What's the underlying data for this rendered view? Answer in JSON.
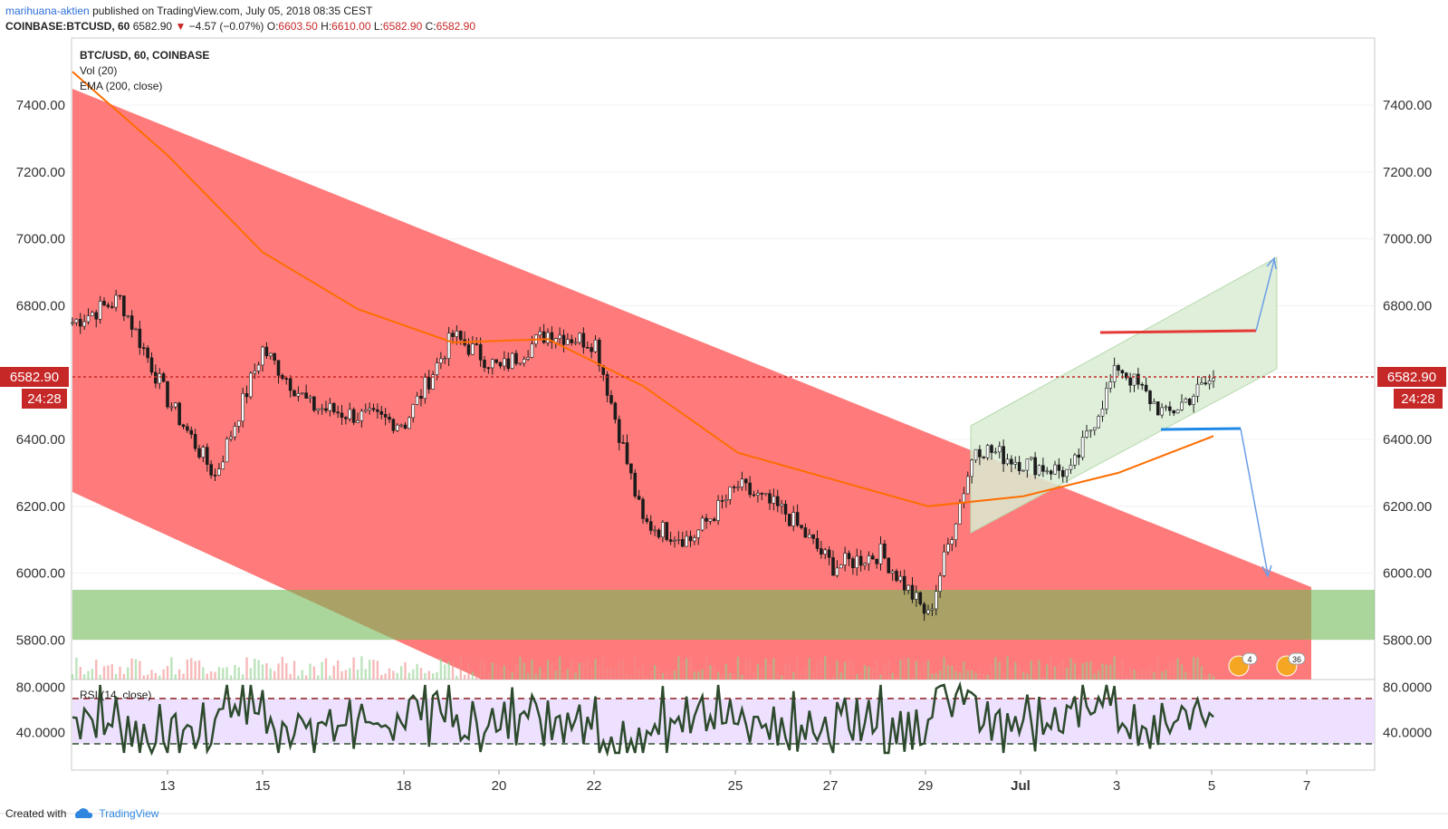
{
  "header": {
    "author": "marihuana-aktien",
    "published": "published on TradingView.com, July 05, 2018 08:35 CEST",
    "symbol": "COINBASE:BTCUSD, 60",
    "last": "6582.90",
    "change": "−4.57 (−0.07%)",
    "o_label": "O:",
    "o": "6603.50",
    "h_label": "H:",
    "h": "6610.00",
    "l_label": "L:",
    "l": "6582.90",
    "c_label": "C:",
    "c": "6582.90"
  },
  "legend": {
    "title": "BTC/USD, 60, COINBASE",
    "vol": "Vol (20)",
    "ema": "EMA (200, close)",
    "rsi": "RSI (14, close)"
  },
  "price_tag": {
    "price": "6582.90",
    "countdown": "24:28"
  },
  "events": {
    "badge1": "4",
    "badge2": "36"
  },
  "footer": {
    "created": "Created with",
    "brand": "TradingView"
  },
  "colors": {
    "channel_red": "#ff7b7b",
    "support_green": "#a5d497",
    "up_channel": "#d9ecd2",
    "ema": "#ff6d00",
    "last_price": "#d32f2f",
    "rsi_line": "#2d4a2d",
    "rsi_band": "#eadcff"
  },
  "chart_data": {
    "type": "line",
    "title": "BTC/USD, 60, COINBASE",
    "y_ticks": [
      "7400.00",
      "7200.00",
      "7000.00",
      "6800.00",
      "6600.00",
      "6400.00",
      "6200.00",
      "6000.00",
      "5800.00"
    ],
    "ylim": [
      5700,
      7550
    ],
    "x_ticks": [
      "13",
      "15",
      "18",
      "20",
      "22",
      "25",
      "27",
      "29",
      "Jul",
      "3",
      "5",
      "7"
    ],
    "rsi_ticks": [
      "80.0000",
      "40.0000"
    ],
    "rsi_levels": [
      70,
      30
    ],
    "series": [
      {
        "name": "BTC/USD",
        "x": [
          "Jun 11",
          "Jun 12",
          "Jun 13",
          "Jun 14",
          "Jun 15",
          "Jun 16",
          "Jun 17",
          "Jun 18",
          "Jun 19",
          "Jun 20",
          "Jun 21",
          "Jun 22",
          "Jun 23",
          "Jun 24",
          "Jun 25",
          "Jun 26",
          "Jun 27",
          "Jun 28",
          "Jun 29",
          "Jun 30",
          "Jul 1",
          "Jul 2",
          "Jul 3",
          "Jul 4",
          "Jul 5"
        ],
        "values": [
          6750,
          6820,
          6520,
          6290,
          6670,
          6500,
          6470,
          6450,
          6710,
          6610,
          6720,
          6690,
          6150,
          6100,
          6260,
          6180,
          6020,
          6060,
          5870,
          6380,
          6330,
          6300,
          6620,
          6470,
          6583
        ]
      },
      {
        "name": "EMA (200, close)",
        "x": [
          "Jun 11",
          "Jun 13",
          "Jun 15",
          "Jun 17",
          "Jun 19",
          "Jun 21",
          "Jun 23",
          "Jun 25",
          "Jun 27",
          "Jun 29",
          "Jul 1",
          "Jul 3",
          "Jul 5"
        ],
        "values": [
          7500,
          7250,
          6960,
          6790,
          6690,
          6700,
          6560,
          6360,
          6280,
          6200,
          6230,
          6300,
          6410
        ]
      }
    ],
    "price_zones": {
      "support_zone": [
        5800,
        5950
      ],
      "resistance_line": 6720,
      "support_line": 6430,
      "last_price": 6582.9
    }
  }
}
